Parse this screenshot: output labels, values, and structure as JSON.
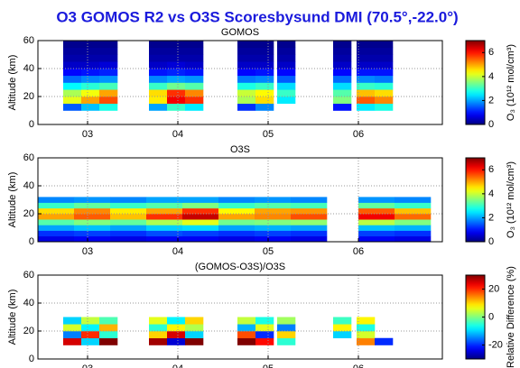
{
  "title": "O3 GOMOS R2 vs O3S Scoresbysund DMI (70.5°,-22.0°)",
  "chart_data": [
    {
      "type": "heatmap",
      "title": "GOMOS",
      "ylabel": "Altitude (km)",
      "zlabel": "O₃ (10¹² mol/cm³)",
      "x": [
        2.83,
        3.03,
        3.23,
        3.78,
        3.98,
        4.18,
        4.76,
        4.96,
        5.2,
        5.82,
        6.08,
        6.28
      ],
      "y": [
        12.5,
        17.5,
        22.5,
        27.5,
        32.5,
        37.5,
        42.5,
        47.5,
        52.5,
        57.5
      ],
      "values": [
        [
          1.5,
          2.2,
          2.8,
          2.0,
          3.0,
          2.5,
          1.2,
          1.8,
          null,
          1.0,
          2.5,
          2.8
        ],
        [
          4.2,
          5.0,
          5.6,
          4.5,
          6.2,
          5.8,
          3.8,
          4.6,
          2.5,
          3.5,
          5.5,
          5.2
        ],
        [
          3.8,
          4.3,
          5.0,
          4.6,
          5.8,
          5.2,
          4.0,
          4.4,
          3.0,
          3.2,
          4.8,
          4.6
        ],
        [
          2.6,
          2.9,
          3.1,
          3.0,
          3.4,
          3.2,
          2.8,
          3.0,
          2.4,
          2.4,
          3.0,
          2.9
        ],
        [
          1.6,
          1.8,
          1.9,
          1.8,
          2.0,
          1.9,
          1.7,
          1.8,
          1.5,
          1.6,
          1.8,
          1.7
        ],
        [
          0.9,
          1.0,
          1.1,
          1.0,
          1.1,
          1.0,
          0.9,
          1.0,
          0.9,
          0.9,
          1.0,
          1.0
        ],
        [
          0.5,
          0.5,
          0.6,
          0.5,
          0.6,
          0.5,
          0.5,
          0.5,
          0.5,
          0.5,
          0.5,
          0.5
        ],
        [
          0.3,
          0.3,
          0.3,
          0.3,
          0.3,
          0.3,
          0.3,
          0.3,
          0.3,
          0.3,
          0.3,
          0.3
        ],
        [
          0.2,
          0.2,
          0.2,
          0.2,
          0.2,
          0.2,
          0.2,
          0.2,
          0.2,
          0.2,
          0.2,
          0.2
        ],
        [
          0.1,
          0.1,
          0.1,
          0.1,
          0.1,
          0.1,
          0.1,
          0.1,
          0.1,
          0.1,
          0.1,
          0.1
        ]
      ],
      "xlim": [
        2.45,
        6.93
      ],
      "ylim": [
        0,
        60
      ],
      "xticks": [
        {
          "value": 3,
          "label": "03"
        },
        {
          "value": 4,
          "label": "04"
        },
        {
          "value": 5,
          "label": "05"
        },
        {
          "value": 6,
          "label": "06"
        }
      ],
      "yticks": [
        0,
        20,
        40,
        60
      ],
      "zlim": [
        0,
        7
      ],
      "zticks": [
        0,
        2,
        4,
        6
      ],
      "grid": true
    },
    {
      "type": "heatmap",
      "title": "O3S",
      "ylabel": "Altitude (km)",
      "zlabel": "O₃ (10¹² mol/cm³)",
      "x": [
        2.65,
        3.05,
        3.45,
        3.85,
        4.25,
        4.65,
        5.05,
        5.45,
        6.2,
        6.6
      ],
      "y": [
        2,
        6,
        10,
        14,
        18,
        22,
        26,
        30
      ],
      "values": [
        [
          0.7,
          0.8,
          0.7,
          0.8,
          0.8,
          0.7,
          0.8,
          0.7,
          0.8,
          0.7
        ],
        [
          1.2,
          1.3,
          1.2,
          1.4,
          1.3,
          1.2,
          1.3,
          1.2,
          1.3,
          1.2
        ],
        [
          2.0,
          2.2,
          2.0,
          2.3,
          2.4,
          2.0,
          2.1,
          2.0,
          2.2,
          2.1
        ],
        [
          3.2,
          3.5,
          3.3,
          3.8,
          4.2,
          3.4,
          3.5,
          3.6,
          3.9,
          3.5
        ],
        [
          5.0,
          5.5,
          4.8,
          5.8,
          6.5,
          5.0,
          5.2,
          5.6,
          6.2,
          5.4
        ],
        [
          4.6,
          5.2,
          4.5,
          5.0,
          5.8,
          4.4,
          5.0,
          5.1,
          5.5,
          4.8
        ],
        [
          3.0,
          3.3,
          3.0,
          3.2,
          3.5,
          3.0,
          3.2,
          3.1,
          3.3,
          3.0
        ],
        [
          1.8,
          1.9,
          1.8,
          2.0,
          2.0,
          1.8,
          1.9,
          1.8,
          1.9,
          1.8
        ]
      ],
      "xlim": [
        2.45,
        6.93
      ],
      "ylim": [
        0,
        60
      ],
      "xticks": [
        {
          "value": 3,
          "label": "03"
        },
        {
          "value": 4,
          "label": "04"
        },
        {
          "value": 5,
          "label": "05"
        },
        {
          "value": 6,
          "label": "06"
        }
      ],
      "yticks": [
        0,
        20,
        40,
        60
      ],
      "zlim": [
        0,
        7
      ],
      "zticks": [
        0,
        2,
        4,
        6
      ],
      "grid": true
    },
    {
      "type": "heatmap",
      "title": "(GOMOS-O3S)/O3S",
      "ylabel": "Altitude (km)",
      "zlabel": "Relative Difference (%)",
      "x": [
        2.83,
        3.03,
        3.23,
        3.78,
        3.98,
        4.18,
        4.76,
        4.96,
        5.2,
        5.82,
        6.08,
        6.28
      ],
      "y": [
        12.5,
        17.5,
        22.5,
        27.5
      ],
      "values": [
        [
          25,
          -10,
          30,
          28,
          -25,
          30,
          30,
          22,
          -5,
          null,
          15,
          -20
        ],
        [
          -15,
          20,
          -5,
          10,
          25,
          -10,
          18,
          -20,
          10,
          -10,
          5,
          null
        ],
        [
          5,
          -8,
          12,
          -5,
          8,
          3,
          -12,
          6,
          -15,
          8,
          -6,
          null
        ],
        [
          -10,
          4,
          -3,
          6,
          -8,
          10,
          4,
          -6,
          2,
          -4,
          8,
          null
        ]
      ],
      "xlim": [
        2.45,
        6.93
      ],
      "ylim": [
        0,
        60
      ],
      "xticks": [
        {
          "value": 3,
          "label": "03"
        },
        {
          "value": 4,
          "label": "04"
        },
        {
          "value": 5,
          "label": "05"
        },
        {
          "value": 6,
          "label": "06"
        }
      ],
      "yticks": [
        0,
        20,
        40,
        60
      ],
      "zlim": [
        -30,
        30
      ],
      "zticks": [
        -20,
        0,
        20
      ],
      "grid": true
    }
  ]
}
